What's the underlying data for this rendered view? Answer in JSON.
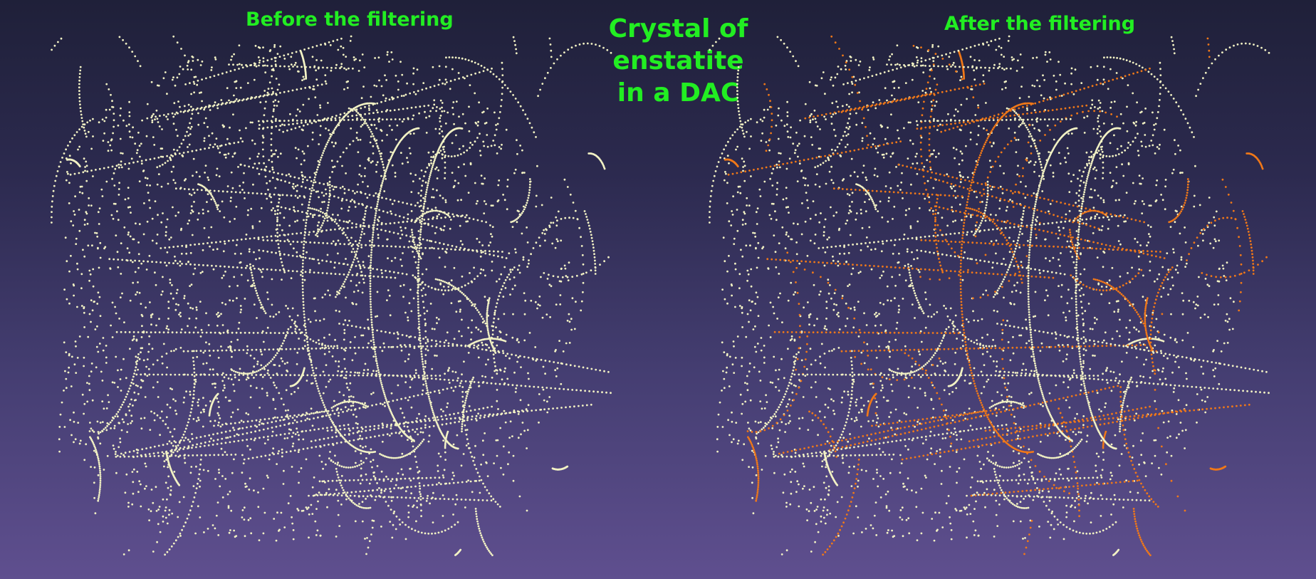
{
  "titles": {
    "before": "Before the filtering",
    "main_line1": "Crystal of enstatite",
    "main_line2": "in a DAC",
    "after": "After the filtering"
  },
  "colors": {
    "background_top": "#1f2039",
    "background_bottom": "#5f4f8f",
    "title_text": "#22ee22",
    "spot_unfiltered": "#f2f2c4",
    "spot_filtered": "#f07818"
  }
}
